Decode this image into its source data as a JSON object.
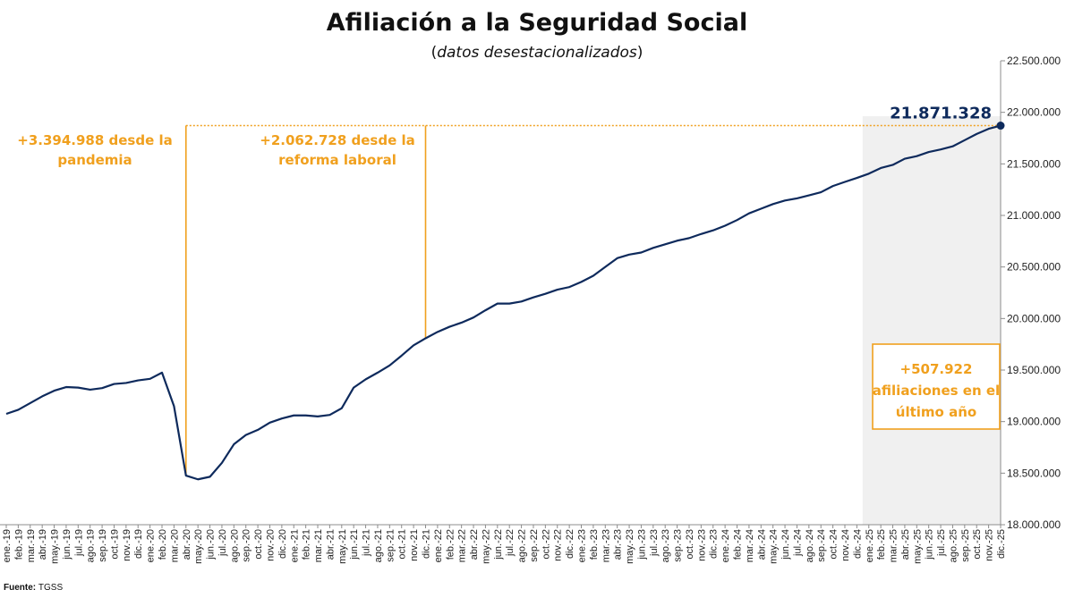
{
  "chart_data": {
    "type": "line",
    "title": "Afiliación a la Seguridad Social",
    "subtitle_open": "(",
    "subtitle": "datos desestacionalizados",
    "subtitle_close": ")",
    "xlabel": "",
    "ylabel": "",
    "ylim": [
      18000000,
      22500000
    ],
    "yticks": [
      "18.000.000",
      "18.500.000",
      "19.000.000",
      "19.500.000",
      "20.000.000",
      "20.500.000",
      "21.000.000",
      "21.500.000",
      "22.000.000",
      "22.500.000"
    ],
    "x": [
      "ene.-19",
      "feb.-19",
      "mar.-19",
      "abr.-19",
      "may.-19",
      "jun.-19",
      "jul.-19",
      "ago.-19",
      "sep.-19",
      "oct.-19",
      "nov.-19",
      "dic.-19",
      "ene.-20",
      "feb.-20",
      "mar.-20",
      "abr.-20",
      "may.-20",
      "jun.-20",
      "jul.-20",
      "ago.-20",
      "sep.-20",
      "oct.-20",
      "nov.-20",
      "dic.-20",
      "ene.-21",
      "feb.-21",
      "mar.-21",
      "abr.-21",
      "may.-21",
      "jun.-21",
      "jul.-21",
      "ago.-21",
      "sep.-21",
      "oct.-21",
      "nov.-21",
      "dic.-21",
      "ene.-22",
      "feb.-22",
      "mar.-22",
      "abr.-22",
      "may.-22",
      "jun.-22",
      "jul.-22",
      "ago.-22",
      "sep.-22",
      "oct.-22",
      "nov.-22",
      "dic.-22",
      "ene.-23",
      "feb.-23",
      "mar.-23",
      "abr.-23",
      "may.-23",
      "jun.-23",
      "jul.-23",
      "ago.-23",
      "sep.-23",
      "oct.-23",
      "nov.-23",
      "dic.-23",
      "ene.-24",
      "feb.-24",
      "mar.-24",
      "abr.-24",
      "may.-24",
      "jun.-24",
      "jul.-24",
      "ago.-24",
      "sep.-24",
      "oct.-24",
      "nov.-24",
      "dic.-24",
      "ene.-25",
      "feb.-25",
      "mar.-25",
      "abr.-25",
      "may.-25",
      "jun.-25",
      "jul.-25",
      "ago.-25",
      "sep.-25",
      "oct.-25",
      "nov.-25",
      "dic.-25"
    ],
    "series": [
      {
        "values": [
          19075000,
          19115000,
          19180000,
          19245000,
          19300000,
          19335000,
          19330000,
          19310000,
          19325000,
          19365000,
          19375000,
          19400000,
          19415000,
          19475000,
          19150000,
          18476000,
          18440000,
          18465000,
          18600000,
          18780000,
          18870000,
          18920000,
          18990000,
          19030000,
          19060000,
          19060000,
          19050000,
          19065000,
          19130000,
          19330000,
          19410000,
          19475000,
          19545000,
          19640000,
          19740000,
          19808000,
          19870000,
          19920000,
          19960000,
          20010000,
          20080000,
          20145000,
          20145000,
          20165000,
          20205000,
          20240000,
          20280000,
          20305000,
          20355000,
          20415000,
          20500000,
          20585000,
          20620000,
          20640000,
          20685000,
          20720000,
          20755000,
          20780000,
          20820000,
          20855000,
          20900000,
          20955000,
          21020000,
          21065000,
          21110000,
          21145000,
          21165000,
          21195000,
          21225000,
          21285000,
          21325000,
          21363406,
          21405000,
          21460000,
          21490000,
          21550000,
          21575000,
          21615000,
          21640000,
          21670000,
          21730000,
          21790000,
          21840000,
          21871328
        ]
      }
    ],
    "color": "#0e2a5c",
    "accent": "#f0a01e",
    "shade_color": "#f0f0f0",
    "last_value_label": "21.871.328",
    "annotations": {
      "pandemia": {
        "lines": [
          "+3.394.988 desde la",
          "pandemia"
        ],
        "anchor": "abr.-20"
      },
      "reforma": {
        "lines": [
          "+2.062.728 desde la",
          "reforma laboral"
        ],
        "anchor": "dic.-21"
      },
      "ultimo_anio": {
        "lines": [
          "+507.922",
          "afiliaciones en el",
          "último año"
        ],
        "shade_from": "ene.-25"
      }
    },
    "grid": false,
    "legend": "none"
  },
  "source": {
    "label": "Fuente",
    "sep": ": ",
    "value": "TGSS"
  }
}
